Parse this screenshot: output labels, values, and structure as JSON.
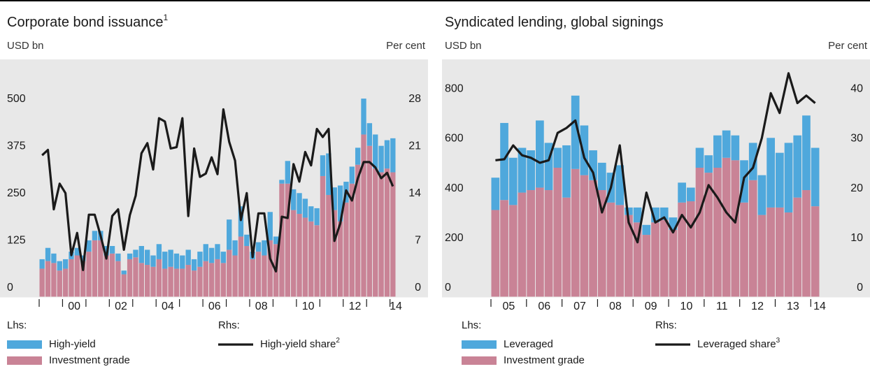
{
  "chart_data": [
    {
      "type": "stacked_bar_line",
      "title": "Corporate bond issuance",
      "title_note": "1",
      "ylabel_left": "USD bn",
      "ylabel_right": "Per cent",
      "legend_lhs_label": "Lhs:",
      "legend_rhs_label": "Rhs:",
      "categories": [
        null,
        null,
        null,
        null,
        null,
        "00",
        null,
        null,
        null,
        null,
        null,
        null,
        null,
        "02",
        null,
        null,
        null,
        null,
        null,
        null,
        null,
        "04",
        null,
        null,
        null,
        null,
        null,
        null,
        null,
        "06",
        null,
        null,
        null,
        null,
        null,
        null,
        null,
        "08",
        null,
        null,
        null,
        null,
        null,
        null,
        null,
        "10",
        null,
        null,
        null,
        null,
        null,
        null,
        null,
        "12",
        null,
        null,
        null,
        null,
        null,
        null,
        "14"
      ],
      "series": [
        {
          "name": "High-yield",
          "color": "#4fa8dc",
          "kind": "bar",
          "values": [
            25,
            35,
            25,
            25,
            25,
            20,
            20,
            15,
            30,
            25,
            25,
            25,
            20,
            20,
            10,
            15,
            20,
            45,
            40,
            30,
            40,
            45,
            45,
            40,
            35,
            40,
            30,
            40,
            45,
            40,
            40,
            30,
            80,
            40,
            80,
            30,
            20,
            25,
            40,
            75,
            20,
            10,
            60,
            55,
            55,
            50,
            40,
            45,
            55,
            110,
            60,
            95,
            55,
            45,
            45,
            95,
            60,
            90,
            70,
            75,
            90
          ]
        },
        {
          "name": "Investment grade",
          "color": "#c98396",
          "kind": "bar",
          "values": [
            75,
            95,
            90,
            70,
            75,
            100,
            110,
            95,
            120,
            150,
            150,
            110,
            115,
            95,
            60,
            100,
            105,
            90,
            85,
            80,
            100,
            75,
            80,
            75,
            75,
            85,
            70,
            80,
            95,
            90,
            100,
            90,
            125,
            110,
            160,
            135,
            100,
            120,
            110,
            150,
            140,
            300,
            300,
            230,
            220,
            210,
            200,
            190,
            320,
            270,
            230,
            200,
            250,
            300,
            350,
            430,
            400,
            340,
            330,
            340,
            330
          ]
        },
        {
          "name": "High-yield share",
          "note": "2",
          "color": "#1a1a1a",
          "kind": "line",
          "axis": "y2",
          "values": [
            21,
            21.8,
            13,
            16.8,
            15.4,
            6.2,
            9.5,
            4,
            12.2,
            12.2,
            9.1,
            5.7,
            12,
            13,
            7,
            12.1,
            15,
            21.3,
            22.8,
            18.9,
            26.5,
            26,
            22,
            22.2,
            26.5,
            12,
            22,
            17.8,
            18.3,
            20.7,
            18.2,
            27.8,
            23,
            20.2,
            11.4,
            15.4,
            5.9,
            12.4,
            12.4,
            5.7,
            3.8,
            11.9,
            11.7,
            19.7,
            17.1,
            21.5,
            19.5,
            24.9,
            23.7,
            24.9,
            8.3,
            10.9,
            15.8,
            14.3,
            17.6,
            20,
            20,
            19.2,
            17.6,
            18.4,
            16.4
          ]
        }
      ],
      "ylim": [
        0,
        625
      ],
      "yticks": [
        0,
        125,
        250,
        375,
        500
      ],
      "y2lim": [
        0,
        35
      ],
      "y2ticks": [
        0,
        7,
        14,
        21,
        28
      ],
      "grid": false
    },
    {
      "type": "stacked_bar_line",
      "title": "Syndicated lending, global signings",
      "ylabel_left": "USD bn",
      "ylabel_right": "Per cent",
      "legend_lhs_label": "Lhs:",
      "legend_rhs_label": "Rhs:",
      "categories": [
        null,
        "05",
        null,
        null,
        null,
        "06",
        null,
        null,
        null,
        "07",
        null,
        null,
        null,
        "08",
        null,
        null,
        null,
        "09",
        null,
        null,
        null,
        "10",
        null,
        null,
        null,
        "11",
        null,
        null,
        null,
        "12",
        null,
        null,
        null,
        "13",
        null,
        null,
        "14"
      ],
      "series": [
        {
          "name": "Leveraged",
          "color": "#4fa8dc",
          "kind": "bar",
          "values": [
            130,
            310,
            190,
            180,
            160,
            270,
            190,
            80,
            210,
            295,
            200,
            120,
            110,
            120,
            160,
            30,
            60,
            40,
            60,
            50,
            50,
            80,
            55,
            80,
            70,
            130,
            110,
            100,
            170,
            150,
            160,
            280,
            220,
            280,
            250,
            300,
            235
          ]
        },
        {
          "name": "Investment grade",
          "color": "#c98396",
          "kind": "bar",
          "values": [
            350,
            390,
            370,
            420,
            430,
            440,
            430,
            520,
            400,
            515,
            490,
            470,
            430,
            380,
            370,
            330,
            300,
            250,
            300,
            310,
            270,
            380,
            385,
            520,
            500,
            520,
            560,
            550,
            380,
            470,
            330,
            360,
            360,
            340,
            400,
            430,
            365
          ]
        },
        {
          "name": "Leveraged share",
          "note": "3",
          "color": "#1a1a1a",
          "kind": "line",
          "axis": "y2",
          "values": [
            27.5,
            27.7,
            30.5,
            28.5,
            28,
            27,
            27.5,
            33,
            34,
            35.5,
            28,
            25,
            17,
            22,
            30.5,
            15,
            11,
            21,
            15,
            16,
            13,
            16.5,
            14,
            17,
            22.5,
            20,
            17,
            15,
            24,
            26,
            32,
            41,
            37,
            45,
            39,
            40.5,
            39
          ]
        }
      ],
      "ylim": [
        0,
        950
      ],
      "yticks": [
        0,
        200,
        400,
        600,
        800
      ],
      "y2lim": [
        0,
        47.5
      ],
      "y2ticks": [
        0,
        10,
        20,
        30,
        40
      ],
      "grid": false
    }
  ]
}
